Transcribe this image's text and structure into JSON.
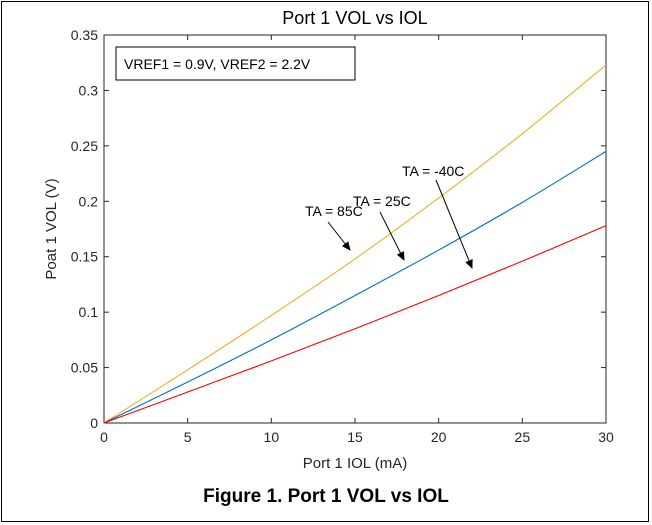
{
  "figure_caption": "Figure 1. Port 1 VOL vs IOL",
  "chart_data": {
    "type": "line",
    "title": "Port 1 VOL vs IOL",
    "xlabel": "Port 1 IOL (mA)",
    "ylabel": "Poat 1 VOL (V)",
    "xlim": [
      0,
      30
    ],
    "ylim": [
      0,
      0.35
    ],
    "xticks": [
      "0",
      "5",
      "10",
      "15",
      "20",
      "25",
      "30"
    ],
    "yticks": [
      "0",
      "0.05",
      "0.1",
      "0.15",
      "0.2",
      "0.25",
      "0.3",
      "0.35"
    ],
    "grid": false,
    "legend_box": "VREF1 = 0.9V, VREF2 = 2.2V",
    "x": [
      0,
      5,
      10,
      15,
      20,
      25,
      30
    ],
    "series": [
      {
        "name": "TA = 85C",
        "color": "#EDB120",
        "values": [
          0,
          0.048,
          0.097,
          0.148,
          0.203,
          0.261,
          0.323
        ]
      },
      {
        "name": "TA = 25C",
        "color": "#0072BD",
        "values": [
          0,
          0.037,
          0.075,
          0.115,
          0.156,
          0.199,
          0.245
        ]
      },
      {
        "name": "TA = -40C",
        "color": "#FF0000",
        "values": [
          0,
          0.028,
          0.056,
          0.085,
          0.115,
          0.146,
          0.178
        ]
      }
    ],
    "annotations": [
      {
        "text": "TA = 85C",
        "series": 0
      },
      {
        "text": "TA = 25C",
        "series": 1
      },
      {
        "text": "TA = -40C",
        "series": 2
      }
    ]
  }
}
